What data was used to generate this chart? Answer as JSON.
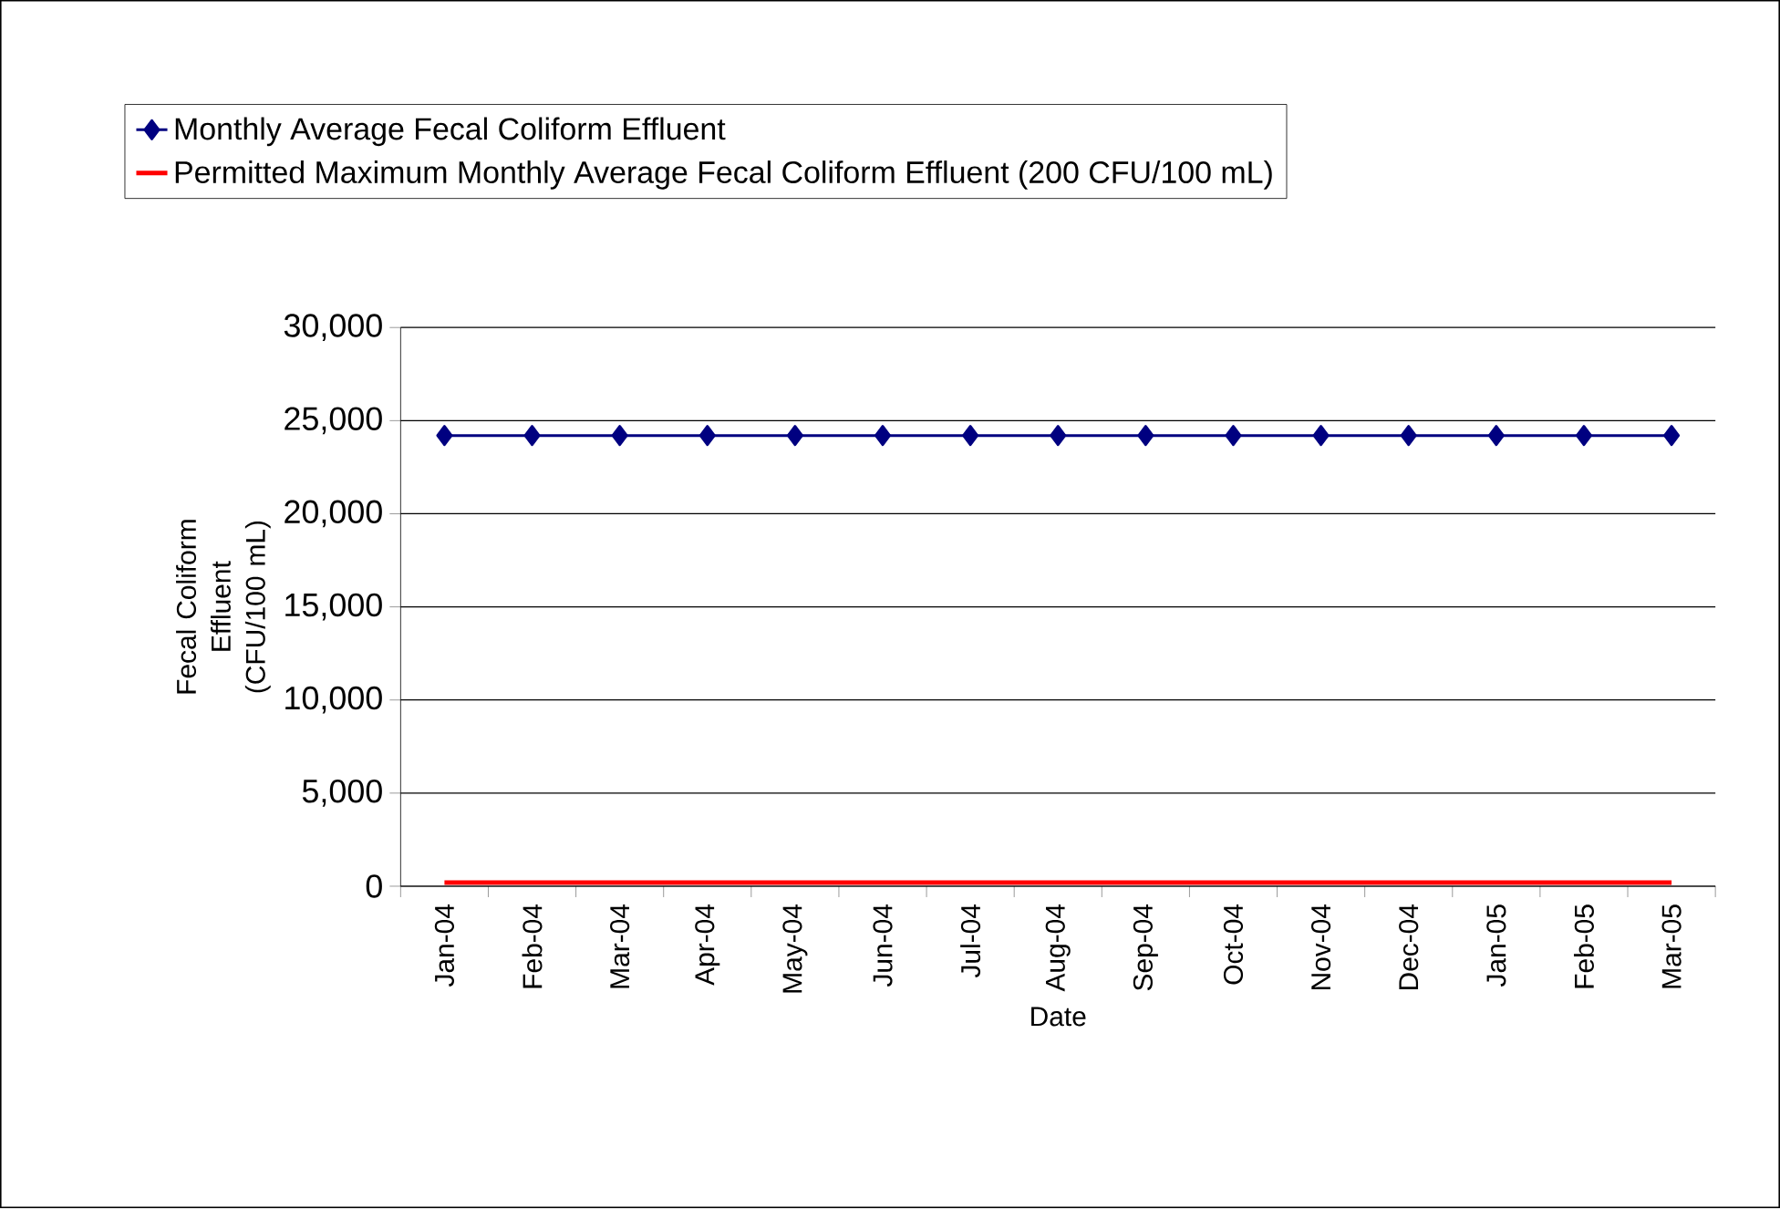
{
  "chart_data": {
    "type": "line",
    "xlabel": "Date",
    "ylabel": "Fecal Coliform Effluent (CFU/100 mL)",
    "categories": [
      "Jan-04",
      "Feb-04",
      "Mar-04",
      "Apr-04",
      "May-04",
      "Jun-04",
      "Jul-04",
      "Aug-04",
      "Sep-04",
      "Oct-04",
      "Nov-04",
      "Dec-04",
      "Jan-05",
      "Feb-05",
      "Mar-05"
    ],
    "series": [
      {
        "name": "Monthly Average Fecal Coliform Effluent",
        "color": "#000080",
        "marker": "diamond",
        "values": [
          24200,
          24200,
          24200,
          24200,
          24200,
          24200,
          24200,
          24200,
          24200,
          24200,
          24200,
          24200,
          24200,
          24200,
          24200
        ]
      },
      {
        "name": "Permitted Maximum Monthly Average Fecal Coliform Effluent (200 CFU/100 mL)",
        "color": "#ff0000",
        "marker": "none",
        "values": [
          200,
          200,
          200,
          200,
          200,
          200,
          200,
          200,
          200,
          200,
          200,
          200,
          200,
          200,
          200
        ]
      }
    ],
    "ylim": [
      0,
      30000
    ],
    "yticks": [
      {
        "value": 0,
        "label": "0"
      },
      {
        "value": 5000,
        "label": "5,000"
      },
      {
        "value": 10000,
        "label": "10,000"
      },
      {
        "value": 15000,
        "label": "15,000"
      },
      {
        "value": 20000,
        "label": "20,000"
      },
      {
        "value": 25000,
        "label": "25,000"
      },
      {
        "value": 30000,
        "label": "30,000"
      }
    ],
    "grid": "y",
    "legend": "top",
    "line_style": "solid"
  }
}
